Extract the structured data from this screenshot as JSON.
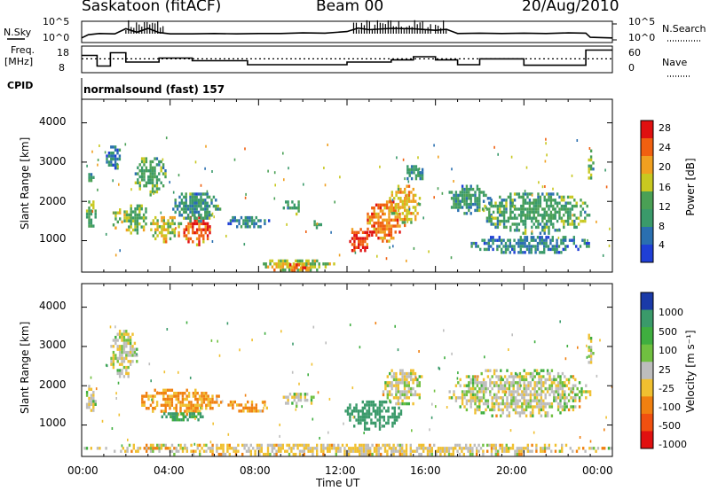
{
  "header": {
    "title": "Saskatoon (fitACF)",
    "beam": "Beam 00",
    "date": "20/Aug/2010"
  },
  "top_panel": {
    "left_label": "N.Sky",
    "left_ticks": [
      "10^5",
      "10^0"
    ],
    "right_label": "N.Search",
    "right_ticks": [
      "10^5",
      "10^0"
    ]
  },
  "freq_panel": {
    "left_label_1": "Freq.",
    "left_label_2": "[MHz]",
    "left_ticks": [
      "18",
      "8"
    ],
    "right_label": "Nave",
    "right_ticks": [
      "60",
      "0"
    ]
  },
  "cpid": {
    "label": "CPID",
    "value": "normalsound (fast) 157"
  },
  "x_axis": {
    "title": "Time UT",
    "ticks": [
      "00:00",
      "04:00",
      "08:00",
      "12:00",
      "16:00",
      "20:00",
      "00:00"
    ]
  },
  "power_panel": {
    "ylabel": "Slant Range [km]",
    "yticks": [
      "1000",
      "2000",
      "3000",
      "4000"
    ],
    "colorbar_label": "Power [dB]",
    "colorbar_ticks": [
      "4",
      "8",
      "12",
      "16",
      "20",
      "24",
      "28"
    ]
  },
  "velocity_panel": {
    "ylabel": "Slant Range [km]",
    "yticks": [
      "1000",
      "2000",
      "3000",
      "4000"
    ],
    "colorbar_label": "Velocity  [m s⁻¹]",
    "colorbar_ticks": [
      "1000",
      "500",
      "100",
      "25",
      "-25",
      "-100",
      "-500",
      "-1000"
    ]
  },
  "colors": {
    "power_scale": [
      "#1f3fd6",
      "#2a6fb0",
      "#3a9a6a",
      "#4aa055",
      "#c8c820",
      "#f0a020",
      "#f06010",
      "#e01010"
    ],
    "velocity_scale": [
      "#1a3aa8",
      "#3a9a6a",
      "#3fae3f",
      "#70c040",
      "#bdbdbd",
      "#f0c030",
      "#f08010",
      "#f05010",
      "#e01010"
    ]
  },
  "chart_data": [
    {
      "type": "line",
      "title": "N.Sky / N.Search",
      "x_unit": "hours UT",
      "xlim": [
        0,
        24
      ],
      "ylim": [
        0,
        5
      ],
      "y_scale": "log10",
      "series": [
        {
          "name": "N.Sky",
          "x": [
            0,
            0.3,
            0.8,
            1.5,
            2.0,
            2.5,
            3.0,
            3.5,
            4.0,
            5.0,
            6.0,
            7.0,
            8.0,
            9.0,
            10.0,
            11.0,
            12.0,
            12.5,
            13.0,
            14.0,
            15.0,
            16.0,
            16.5,
            17.0,
            18.0,
            19.0,
            20.0,
            21.0,
            22.0,
            22.8,
            23.0,
            24.0
          ],
          "y": [
            0.6,
            1.6,
            2.0,
            1.9,
            3.5,
            2.4,
            3.6,
            2.3,
            1.9,
            1.9,
            2.0,
            1.9,
            2.0,
            2.0,
            2.2,
            2.1,
            2.6,
            3.7,
            3.2,
            3.6,
            3.5,
            3.0,
            3.3,
            2.0,
            2.1,
            2.0,
            2.1,
            2.0,
            2.2,
            2.1,
            0.8,
            0.6
          ]
        }
      ]
    },
    {
      "type": "line",
      "title": "Freq / Nave",
      "x_unit": "hours UT",
      "xlim": [
        0,
        24
      ],
      "ylim": [
        8,
        18
      ],
      "series": [
        {
          "name": "Freq.",
          "x": [
            0,
            0.7,
            0.7,
            1.3,
            1.3,
            2.0,
            2.0,
            3.5,
            3.5,
            5.0,
            5.0,
            7.5,
            7.5,
            12.0,
            12.0,
            14.0,
            14.0,
            15.0,
            15.0,
            16.0,
            16.0,
            17.0,
            17.0,
            18.0,
            18.0,
            20.0,
            20.0,
            22.8,
            22.8,
            24.0
          ],
          "y": [
            14.5,
            14.5,
            10.5,
            10.5,
            15.5,
            15.5,
            12.0,
            12.0,
            13.5,
            13.5,
            12.5,
            12.5,
            11.0,
            11.0,
            12.0,
            12.0,
            12.8,
            12.8,
            14.0,
            14.0,
            12.8,
            12.8,
            11.0,
            11.0,
            13.2,
            13.2,
            10.8,
            10.8,
            16.5,
            16.5
          ]
        },
        {
          "name": "Nave",
          "x": [
            0,
            24
          ],
          "y": [
            13.2,
            13.2
          ]
        }
      ]
    },
    {
      "type": "heatmap",
      "title": "Power [dB]",
      "x_unit": "hours UT",
      "xlim": [
        0,
        24
      ],
      "ylim": [
        200,
        4600
      ],
      "color_range": [
        0,
        32
      ],
      "blobs": [
        {
          "t0": 0.1,
          "t1": 0.6,
          "r0": 1300,
          "r1": 2100,
          "level": 14
        },
        {
          "t0": 0.2,
          "t1": 0.5,
          "r0": 2500,
          "r1": 2800,
          "level": 12
        },
        {
          "t0": 1.0,
          "t1": 1.8,
          "r0": 2850,
          "r1": 3500,
          "level": 6
        },
        {
          "t0": 1.3,
          "t1": 1.8,
          "r0": 1300,
          "r1": 1900,
          "level": 16
        },
        {
          "t0": 1.8,
          "t1": 3.0,
          "r0": 1200,
          "r1": 2000,
          "level": 14
        },
        {
          "t0": 2.3,
          "t1": 3.8,
          "r0": 2200,
          "r1": 3200,
          "level": 12
        },
        {
          "t0": 3.0,
          "t1": 4.5,
          "r0": 1000,
          "r1": 1700,
          "level": 18
        },
        {
          "t0": 4.5,
          "t1": 5.8,
          "r0": 900,
          "r1": 1700,
          "level": 26
        },
        {
          "t0": 4.0,
          "t1": 6.3,
          "r0": 1500,
          "r1": 2300,
          "level": 10
        },
        {
          "t0": 6.5,
          "t1": 8.5,
          "r0": 1350,
          "r1": 1700,
          "level": 8
        },
        {
          "t0": 9.0,
          "t1": 10.0,
          "r0": 1700,
          "r1": 2100,
          "level": 10
        },
        {
          "t0": 10.3,
          "t1": 10.8,
          "r0": 1300,
          "r1": 1600,
          "level": 12
        },
        {
          "t0": 12.0,
          "t1": 13.0,
          "r0": 700,
          "r1": 1400,
          "level": 28
        },
        {
          "t0": 12.8,
          "t1": 14.5,
          "r0": 1000,
          "r1": 2100,
          "level": 24
        },
        {
          "t0": 13.8,
          "t1": 15.3,
          "r0": 1400,
          "r1": 2500,
          "level": 20
        },
        {
          "t0": 14.5,
          "t1": 15.5,
          "r0": 2500,
          "r1": 3000,
          "level": 10
        },
        {
          "t0": 16.5,
          "t1": 18.5,
          "r0": 1700,
          "r1": 2500,
          "level": 10
        },
        {
          "t0": 18.0,
          "t1": 23.0,
          "r0": 1200,
          "r1": 2300,
          "level": 12
        },
        {
          "t0": 17.5,
          "t1": 23.0,
          "r0": 700,
          "r1": 1200,
          "level": 8
        },
        {
          "t0": 8.0,
          "t1": 11.5,
          "r0": 250,
          "r1": 600,
          "level": 18
        },
        {
          "t0": 9.2,
          "t1": 10.3,
          "r0": 250,
          "r1": 500,
          "level": 26
        },
        {
          "t0": 22.8,
          "t1": 23.1,
          "r0": 2600,
          "r1": 3400,
          "level": 14
        }
      ]
    },
    {
      "type": "heatmap",
      "title": "Velocity [m s⁻¹]",
      "x_unit": "hours UT",
      "xlim": [
        0,
        24
      ],
      "ylim": [
        200,
        4600
      ],
      "color_range": [
        -1000,
        1000
      ],
      "blobs": [
        {
          "t0": 0.1,
          "t1": 0.6,
          "r0": 1300,
          "r1": 2100,
          "level": 0
        },
        {
          "t0": 1.2,
          "t1": 2.5,
          "r0": 2200,
          "r1": 3500,
          "level": 0
        },
        {
          "t0": 2.5,
          "t1": 6.3,
          "r0": 1300,
          "r1": 2000,
          "level": -100
        },
        {
          "t0": 3.5,
          "t1": 5.5,
          "r0": 1100,
          "r1": 1400,
          "level": 100
        },
        {
          "t0": 6.5,
          "t1": 8.5,
          "r0": 1350,
          "r1": 1700,
          "level": -100
        },
        {
          "t0": 9.0,
          "t1": 10.5,
          "r0": 1500,
          "r1": 1900,
          "level": 0
        },
        {
          "t0": 11.8,
          "t1": 14.5,
          "r0": 900,
          "r1": 1700,
          "level": 300
        },
        {
          "t0": 13.5,
          "t1": 15.5,
          "r0": 1500,
          "r1": 2500,
          "level": 0
        },
        {
          "t0": 16.5,
          "t1": 23.0,
          "r0": 1200,
          "r1": 2500,
          "level": 0
        },
        {
          "t0": 0.0,
          "t1": 24.0,
          "r0": 250,
          "r1": 600,
          "level": -30
        },
        {
          "t0": 22.8,
          "t1": 23.1,
          "r0": 2600,
          "r1": 3400,
          "level": 0
        }
      ]
    }
  ]
}
